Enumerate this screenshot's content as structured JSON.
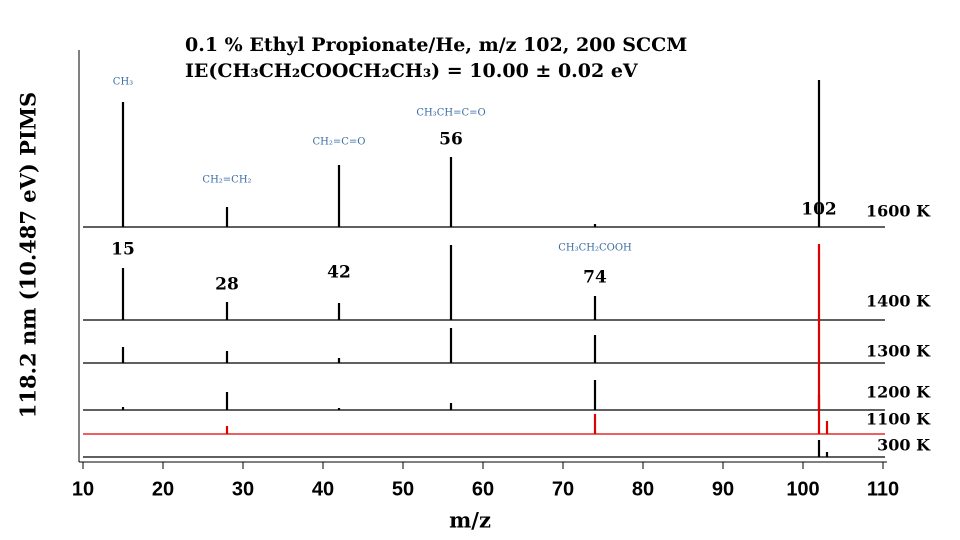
{
  "chart_data": {
    "type": "stacked-spectra",
    "title": "0.1 % Ethyl Propionate/He, m/z 102, 200 SCCM",
    "subtitle": "IE(CH₃CH₂COOCH₂CH₃) = 10.00 ± 0.02 eV",
    "x_label": "m/z",
    "y_label": "118.2 nm (10.487 eV) PIMS",
    "xlim": [
      10,
      110
    ],
    "xticks": [
      10,
      20,
      30,
      40,
      50,
      60,
      70,
      80,
      90,
      100,
      110
    ],
    "x": [
      15,
      28,
      42,
      56,
      74,
      102,
      103
    ],
    "series": [
      {
        "name": "1600 K",
        "color": "#000000",
        "values": [
          125,
          20,
          62,
          70,
          3,
          147,
          0
        ]
      },
      {
        "name": "1400 K",
        "color": "#000000",
        "values": [
          52,
          18,
          17,
          75,
          24,
          0,
          0
        ]
      },
      {
        "name": "1300 K",
        "color": "#000000",
        "values": [
          16,
          12,
          5,
          35,
          28,
          0,
          0
        ]
      },
      {
        "name": "1200 K",
        "color": "#000000",
        "values": [
          3,
          18,
          2,
          7,
          30,
          15,
          0
        ]
      },
      {
        "name": "1100 K",
        "color": "#e00000",
        "values": [
          0,
          8,
          0,
          0,
          20,
          190,
          13
        ]
      },
      {
        "name": "300 K",
        "color": "#000000",
        "values": [
          0,
          0,
          0,
          0,
          0,
          17,
          5
        ]
      }
    ],
    "peak_labels": [
      {
        "text": "15",
        "x": 15
      },
      {
        "text": "28",
        "x": 28
      },
      {
        "text": "42",
        "x": 42
      },
      {
        "text": "56",
        "x": 56
      },
      {
        "text": "74",
        "x": 74
      },
      {
        "text": "102",
        "x": 102
      }
    ],
    "species_labels": [
      {
        "text": "CH₃",
        "x": 15
      },
      {
        "text": "CH₂=CH₂",
        "x": 28
      },
      {
        "text": "CH₂=C=O",
        "x": 42
      },
      {
        "text": "CH₃CH=C=O",
        "x": 56
      },
      {
        "text": "CH₃CH₂COOH",
        "x": 74
      }
    ]
  }
}
